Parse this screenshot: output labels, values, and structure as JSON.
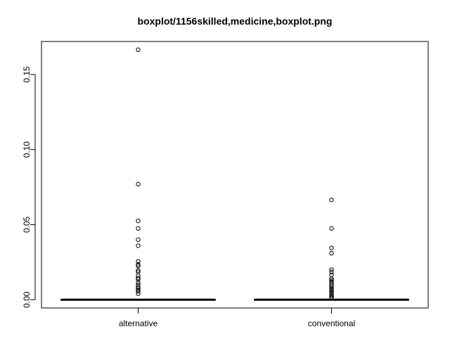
{
  "chart_data": {
    "type": "boxplot",
    "title": "boxplot/1156skilled,medicine,boxplot.png",
    "xlabel": "",
    "ylabel": "",
    "ylim": [
      -0.0055,
      0.172
    ],
    "yticks": [
      0.0,
      0.05,
      0.1,
      0.15
    ],
    "ytick_labels": [
      "0.00",
      "0.05",
      "0.10",
      "0.15"
    ],
    "categories": [
      "alternative",
      "conventional"
    ],
    "grid": false,
    "boxes": [
      {
        "category": "alternative",
        "q1": 0.0,
        "median": 0.0,
        "q3": 0.0,
        "whisker_low": 0.0,
        "whisker_high": 0.0,
        "outliers": [
          0.1665,
          0.077,
          0.0525,
          0.0475,
          0.04,
          0.036,
          0.0255,
          0.0235,
          0.0225,
          0.0195,
          0.0185,
          0.016,
          0.0145,
          0.0135,
          0.0115,
          0.01,
          0.0085,
          0.0075,
          0.0065,
          0.0055,
          0.004
        ]
      },
      {
        "category": "conventional",
        "q1": 0.0,
        "median": 0.0,
        "q3": 0.0,
        "whisker_low": 0.0,
        "whisker_high": 0.0,
        "outliers": [
          0.0665,
          0.0475,
          0.0345,
          0.031,
          0.02,
          0.0185,
          0.0165,
          0.014,
          0.013,
          0.012,
          0.011,
          0.0095,
          0.0085,
          0.0075,
          0.0065,
          0.0055,
          0.0045,
          0.0035,
          0.0025,
          0.0015,
          0.001
        ]
      }
    ]
  }
}
